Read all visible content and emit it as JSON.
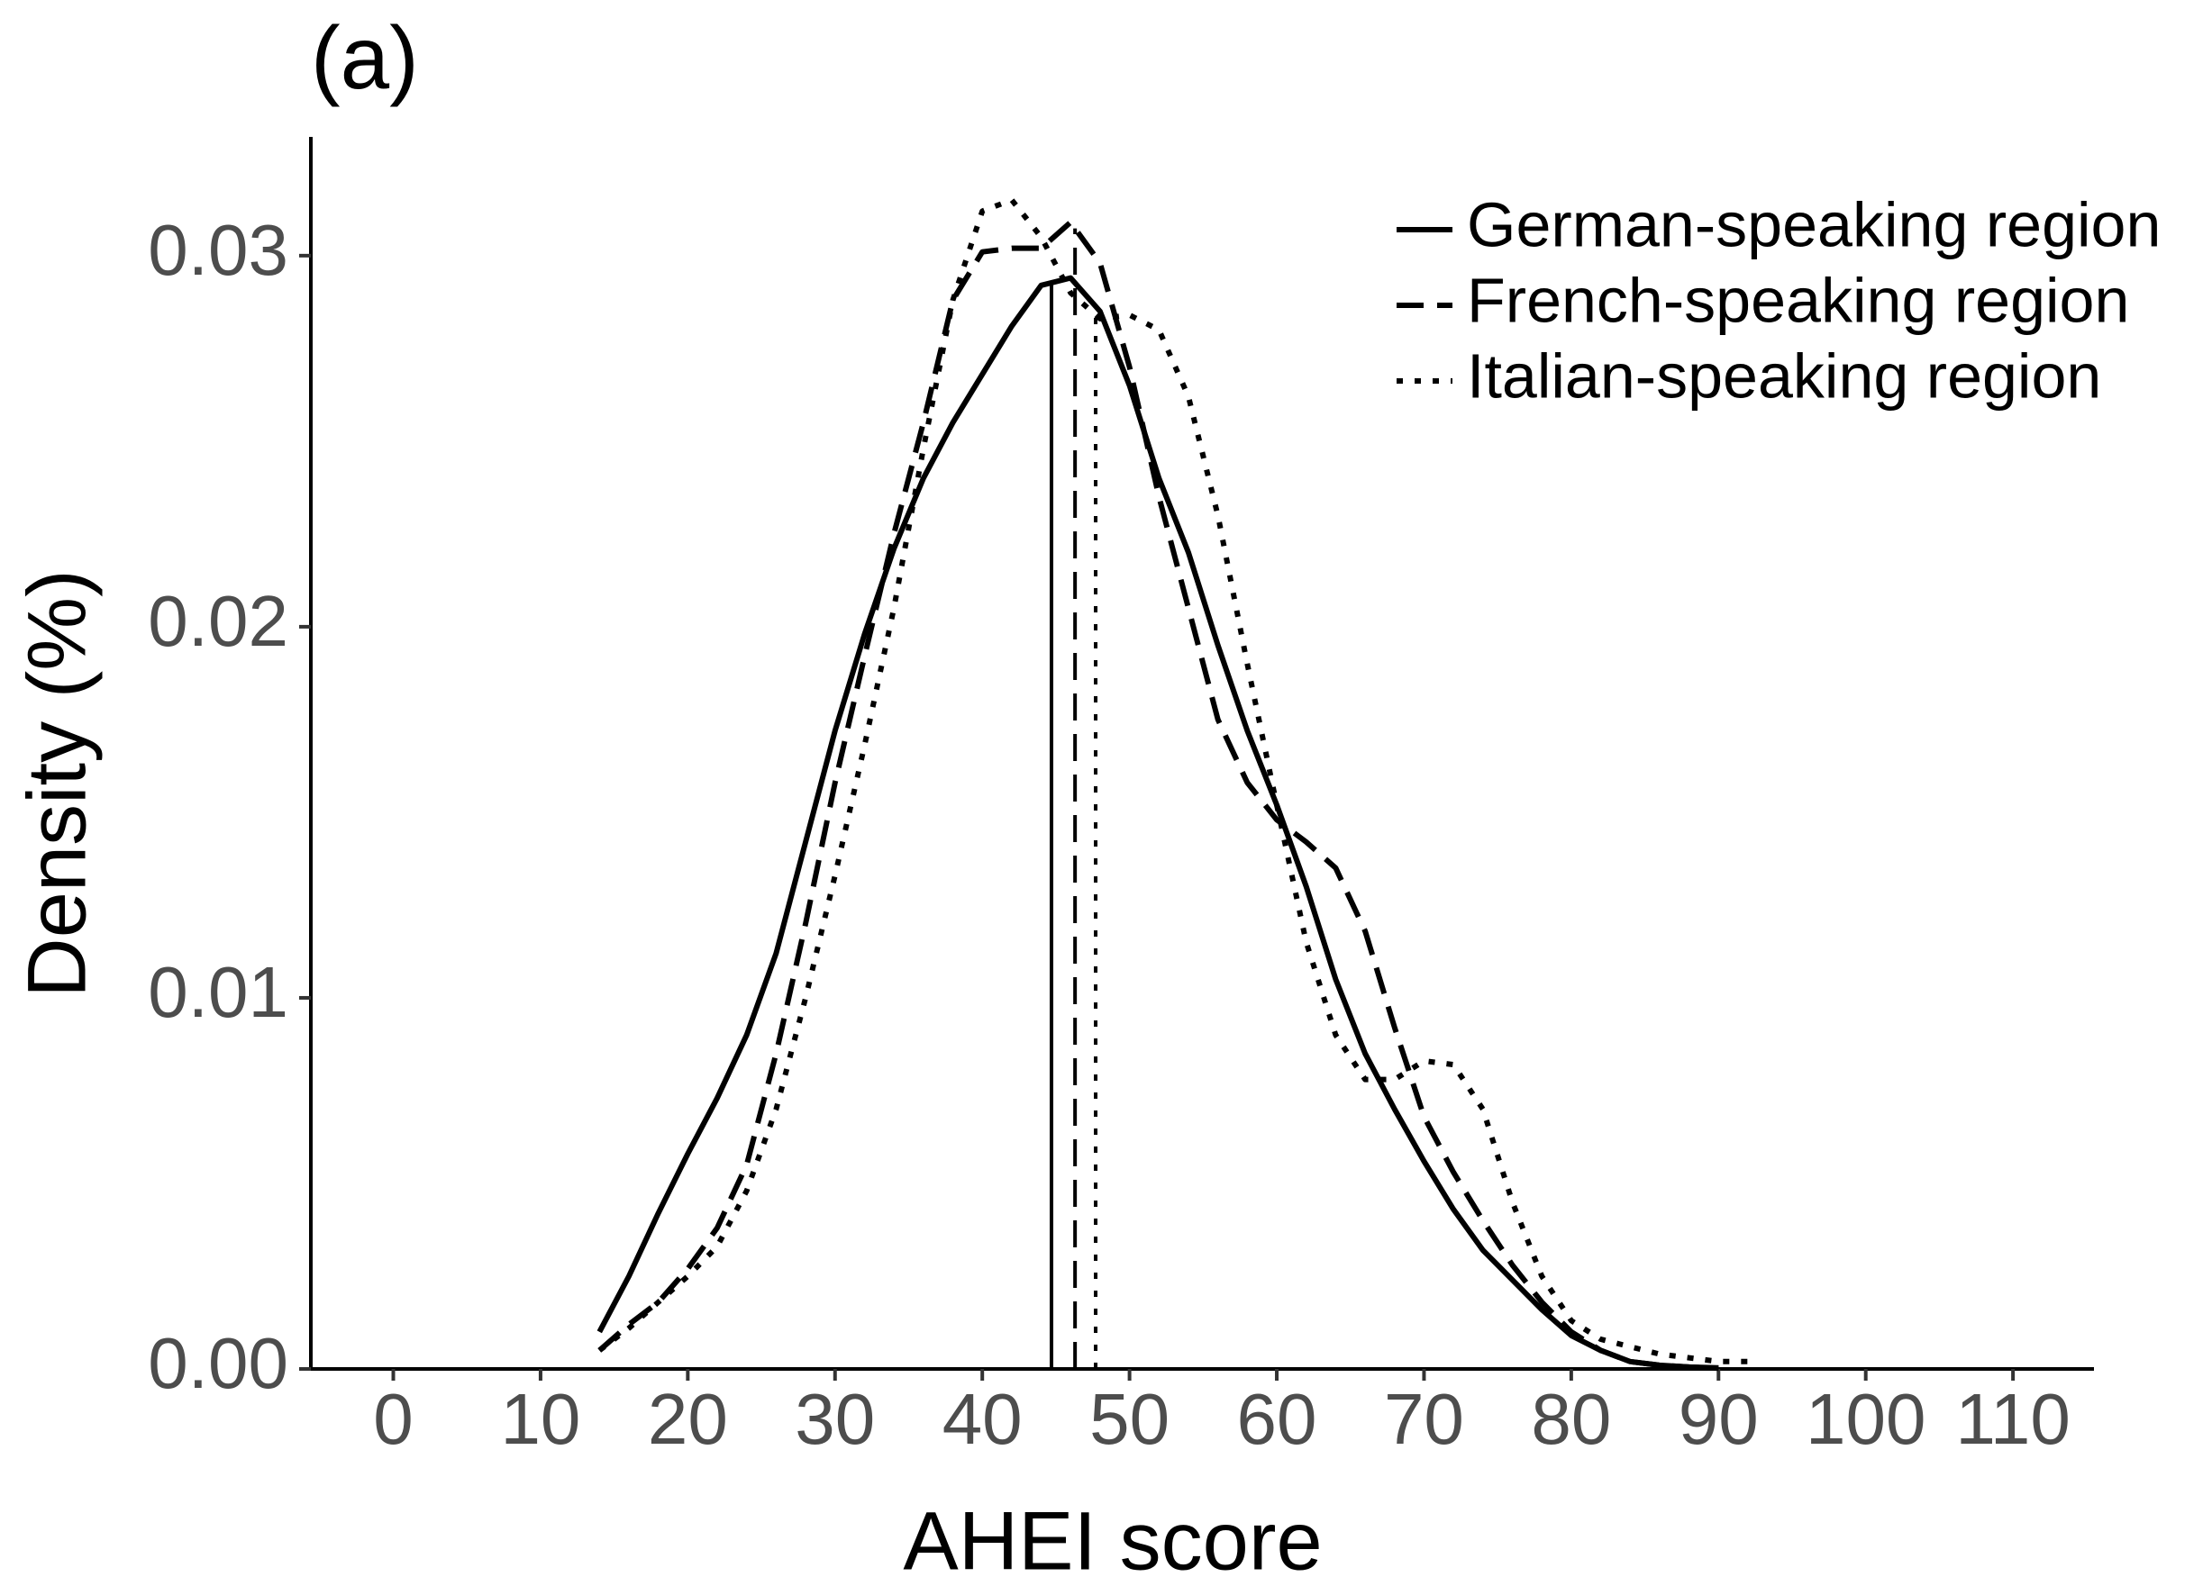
{
  "chart_data": {
    "type": "line",
    "title": "(a)",
    "x_label": "AHEI score",
    "y_label": "Density (%)",
    "x": [
      14,
      16,
      18,
      20,
      22,
      24,
      26,
      28,
      30,
      32,
      34,
      36,
      38,
      40,
      42,
      44,
      46,
      48,
      50,
      52,
      54,
      56,
      58,
      60,
      62,
      64,
      66,
      68,
      70,
      72,
      74,
      76,
      78,
      80,
      82,
      84,
      86,
      88,
      90,
      92
    ],
    "series": [
      {
        "name": "German-speaking region",
        "color": "#000000",
        "dash": "solid",
        "mean": 44.7,
        "values": [
          0.001,
          0.0025,
          0.0042,
          0.0058,
          0.0073,
          0.009,
          0.0112,
          0.0142,
          0.0172,
          0.0198,
          0.0221,
          0.024,
          0.0255,
          0.0268,
          0.0281,
          0.0292,
          0.0294,
          0.0285,
          0.0265,
          0.024,
          0.022,
          0.0195,
          0.0172,
          0.0152,
          0.013,
          0.0105,
          0.0085,
          0.007,
          0.0056,
          0.0043,
          0.0032,
          0.0024,
          0.0016,
          0.0009,
          0.0005,
          0.0002,
          0.0001,
          5e-05,
          3e-05,
          null
        ]
      },
      {
        "name": "French-speaking region",
        "color": "#000000",
        "dash": "dashed",
        "mean": 46.3,
        "values": [
          0.0005,
          0.0012,
          0.0018,
          0.0027,
          0.0038,
          0.0055,
          0.0085,
          0.012,
          0.0158,
          0.0192,
          0.0225,
          0.0255,
          0.0288,
          0.0301,
          0.0302,
          0.0302,
          0.0309,
          0.0298,
          0.027,
          0.0235,
          0.0205,
          0.0175,
          0.0158,
          0.0148,
          0.0142,
          0.0135,
          0.0118,
          0.0092,
          0.0068,
          0.0053,
          0.004,
          0.0028,
          0.0018,
          0.001,
          0.0005,
          0.0002,
          0.0001,
          5e-05,
          2e-05,
          null
        ]
      },
      {
        "name": "Italian-speaking region",
        "color": "#000000",
        "dash": "dotted",
        "mean": 47.7,
        "values": [
          0.0005,
          0.0011,
          0.0018,
          0.0025,
          0.0033,
          0.0048,
          0.007,
          0.01,
          0.0133,
          0.0168,
          0.0205,
          0.0248,
          0.0288,
          0.0312,
          0.0315,
          0.0305,
          0.029,
          0.0283,
          0.0284,
          0.028,
          0.0262,
          0.023,
          0.019,
          0.0152,
          0.0115,
          0.009,
          0.0078,
          0.0078,
          0.0083,
          0.0082,
          0.007,
          0.0045,
          0.0025,
          0.0013,
          0.0008,
          0.0006,
          0.0004,
          0.0003,
          0.0002,
          0.0002
        ]
      }
    ],
    "xlim": [
      -5.6,
      115.5
    ],
    "xticks": [
      0,
      10,
      20,
      30,
      40,
      50,
      60,
      70,
      80,
      90,
      100,
      110
    ],
    "ylim": [
      0,
      0.0332
    ],
    "yticks": [
      {
        "value": 0,
        "label": "0.00"
      },
      0.01,
      0.02,
      0.03
    ],
    "grid": false,
    "legend": "top-right"
  }
}
